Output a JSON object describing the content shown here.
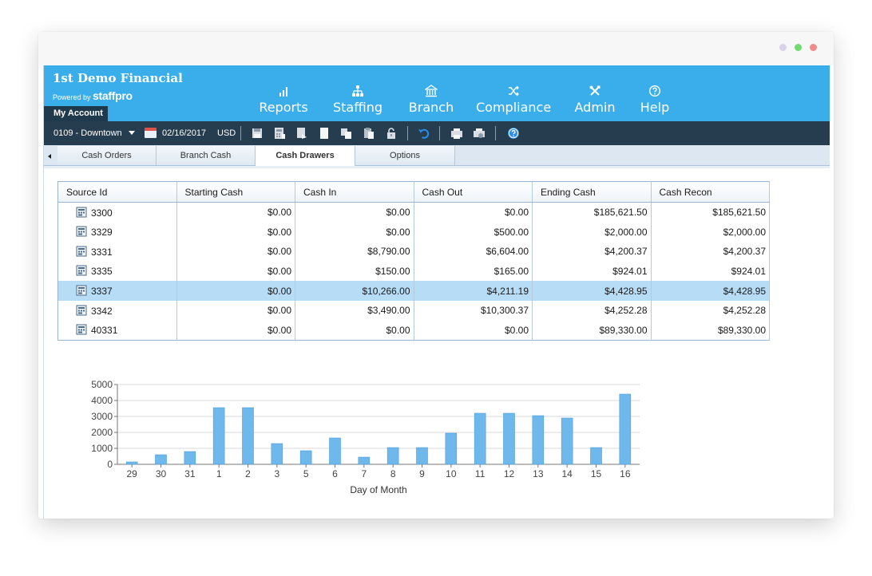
{
  "window": {
    "controls": [
      "minimize-dot",
      "maximize-dot",
      "close-dot"
    ]
  },
  "header": {
    "title": "1st Demo Financial",
    "powered_by": "Powered by",
    "powered_brand": "staffpro",
    "my_account": "My Account",
    "nav": [
      {
        "label": "Reports",
        "icon": "bar-chart-icon"
      },
      {
        "label": "Staffing",
        "icon": "org-chart-icon"
      },
      {
        "label": "Branch",
        "icon": "bank-icon"
      },
      {
        "label": "Compliance",
        "icon": "shuffle-icon"
      },
      {
        "label": "Admin",
        "icon": "tools-icon"
      },
      {
        "label": "Help",
        "icon": "help-icon"
      }
    ]
  },
  "toolbar": {
    "branch": "0109 - Downtown",
    "date": "02/16/2017",
    "currency": "USD",
    "buttons": [
      "save-icon",
      "calculator-icon",
      "export-icon",
      "new-document-icon",
      "copy-icon",
      "paste-icon",
      "lock-icon",
      "undo-icon",
      "print-icon",
      "print-preview-icon",
      "help-icon"
    ],
    "accent_undo": "#2c8ce6",
    "accent_help": "#2c8ce6"
  },
  "tabs": [
    {
      "label": "Cash Orders",
      "active": false
    },
    {
      "label": "Branch Cash",
      "active": false
    },
    {
      "label": "Cash Drawers",
      "active": true
    },
    {
      "label": "Options",
      "active": false
    }
  ],
  "table": {
    "columns": [
      "Source Id",
      "Starting Cash",
      "Cash In",
      "Cash Out",
      "Ending Cash",
      "Cash Recon"
    ],
    "selected_row": 4,
    "rows": [
      [
        "3300",
        "$0.00",
        "$0.00",
        "$0.00",
        "$185,621.50",
        "$185,621.50"
      ],
      [
        "3329",
        "$0.00",
        "$0.00",
        "$500.00",
        "$2,000.00",
        "$2,000.00"
      ],
      [
        "3331",
        "$0.00",
        "$8,790.00",
        "$6,604.00",
        "$4,200.37",
        "$4,200.37"
      ],
      [
        "3335",
        "$0.00",
        "$150.00",
        "$165.00",
        "$924.01",
        "$924.01"
      ],
      [
        "3337",
        "$0.00",
        "$10,266.00",
        "$4,211.19",
        "$4,428.95",
        "$4,428.95"
      ],
      [
        "3342",
        "$0.00",
        "$3,490.00",
        "$10,300.37",
        "$4,252.28",
        "$4,252.28"
      ],
      [
        "40331",
        "$0.00",
        "$0.00",
        "$0.00",
        "$89,330.00",
        "$89,330.00"
      ]
    ]
  },
  "chart_data": {
    "type": "bar",
    "categories": [
      "29",
      "30",
      "31",
      "1",
      "2",
      "3",
      "5",
      "6",
      "7",
      "8",
      "9",
      "10",
      "11",
      "12",
      "13",
      "14",
      "15",
      "16"
    ],
    "values": [
      150,
      600,
      800,
      3550,
      3550,
      1300,
      850,
      1650,
      450,
      1050,
      1050,
      1950,
      3200,
      3200,
      3050,
      2900,
      1050,
      4400
    ],
    "title": "",
    "xlabel": "Day of Month",
    "ylabel": "",
    "ylim": [
      0,
      5000
    ],
    "yticks": [
      "0",
      "1000",
      "2000",
      "3000",
      "4000",
      "5000"
    ],
    "grid": true,
    "bar_color": "#6fb8ec"
  }
}
